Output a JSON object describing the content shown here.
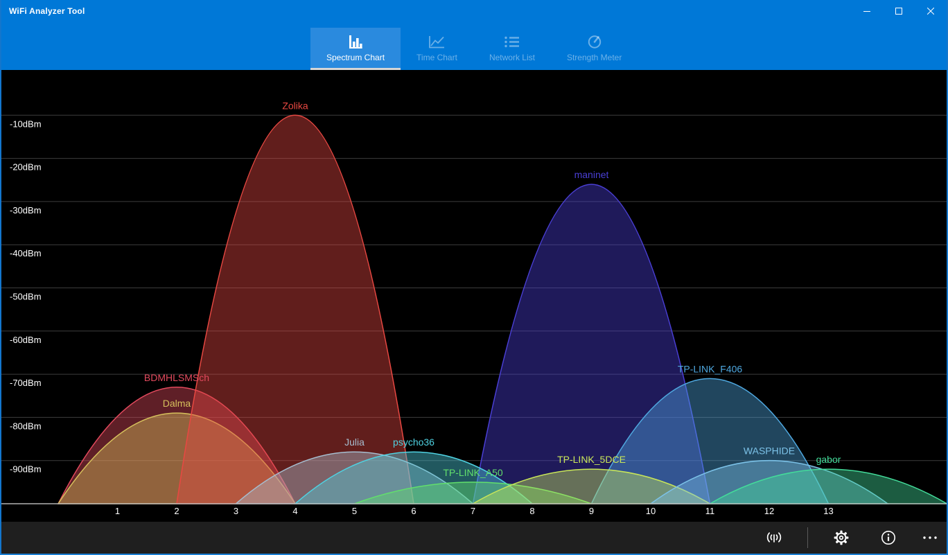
{
  "window": {
    "title": "WiFi Analyzer Tool",
    "accent_color": "#0078d7"
  },
  "nav": {
    "tabs": [
      {
        "label": "Spectrum Chart",
        "icon": "bar-chart-icon",
        "active": true
      },
      {
        "label": "Time Chart",
        "icon": "line-chart-icon",
        "active": false
      },
      {
        "label": "Network List",
        "icon": "list-icon",
        "active": false
      },
      {
        "label": "Strength Meter",
        "icon": "gauge-icon",
        "active": false
      }
    ]
  },
  "chart_data": {
    "type": "area",
    "description": "WiFi spectrum chart: one parabolic lobe per network, signal strength in dBm vs 2.4GHz channel",
    "grid": true,
    "background": "#000000",
    "x_ticks": [
      1,
      2,
      3,
      4,
      5,
      6,
      7,
      8,
      9,
      10,
      11,
      12,
      13
    ],
    "y_ticks": [
      {
        "value": -10,
        "label": "-10dBm"
      },
      {
        "value": -20,
        "label": "-20dBm"
      },
      {
        "value": -30,
        "label": "-30dBm"
      },
      {
        "value": -40,
        "label": "-40dBm"
      },
      {
        "value": -50,
        "label": "-50dBm"
      },
      {
        "value": -60,
        "label": "-60dBm"
      },
      {
        "value": -70,
        "label": "-70dBm"
      },
      {
        "value": -80,
        "label": "-80dBm"
      },
      {
        "value": -90,
        "label": "-90dBm"
      }
    ],
    "ylim": [
      -100,
      0
    ],
    "xlim": [
      -1,
      15
    ],
    "channel_span": 2,
    "networks": [
      {
        "name": "maninet",
        "channel": 9,
        "signal_dbm": -26,
        "color": "#4a3fd6"
      },
      {
        "name": "BDMHLSMSch",
        "channel": 2,
        "signal_dbm": -73,
        "color": "#e2495d"
      },
      {
        "name": "Dalma",
        "channel": 2,
        "signal_dbm": -79,
        "color": "#d6c05c"
      },
      {
        "name": "Zolika",
        "channel": 4,
        "signal_dbm": -10,
        "color": "#e84842"
      },
      {
        "name": "Julia",
        "channel": 5,
        "signal_dbm": -88,
        "color": "#a6bed0"
      },
      {
        "name": "psycho36",
        "channel": 6,
        "signal_dbm": -88,
        "color": "#4fd2e2"
      },
      {
        "name": "TP-LINK_F406",
        "channel": 11,
        "signal_dbm": -71,
        "color": "#4fa8e0"
      },
      {
        "name": "TP-LINK_A50",
        "channel": 7,
        "signal_dbm": -95,
        "color": "#62e06c"
      },
      {
        "name": "TP-LINK_5DCE",
        "channel": 9,
        "signal_dbm": -92,
        "color": "#c9e659"
      },
      {
        "name": "WASPHIDE",
        "channel": 12,
        "signal_dbm": -90,
        "color": "#7cc2e8"
      },
      {
        "name": "gabor",
        "channel": 13,
        "signal_dbm": -92,
        "color": "#43dc9a"
      }
    ]
  },
  "bottom_bar": {
    "icons": [
      "broadcast",
      "settings",
      "info",
      "more"
    ]
  }
}
